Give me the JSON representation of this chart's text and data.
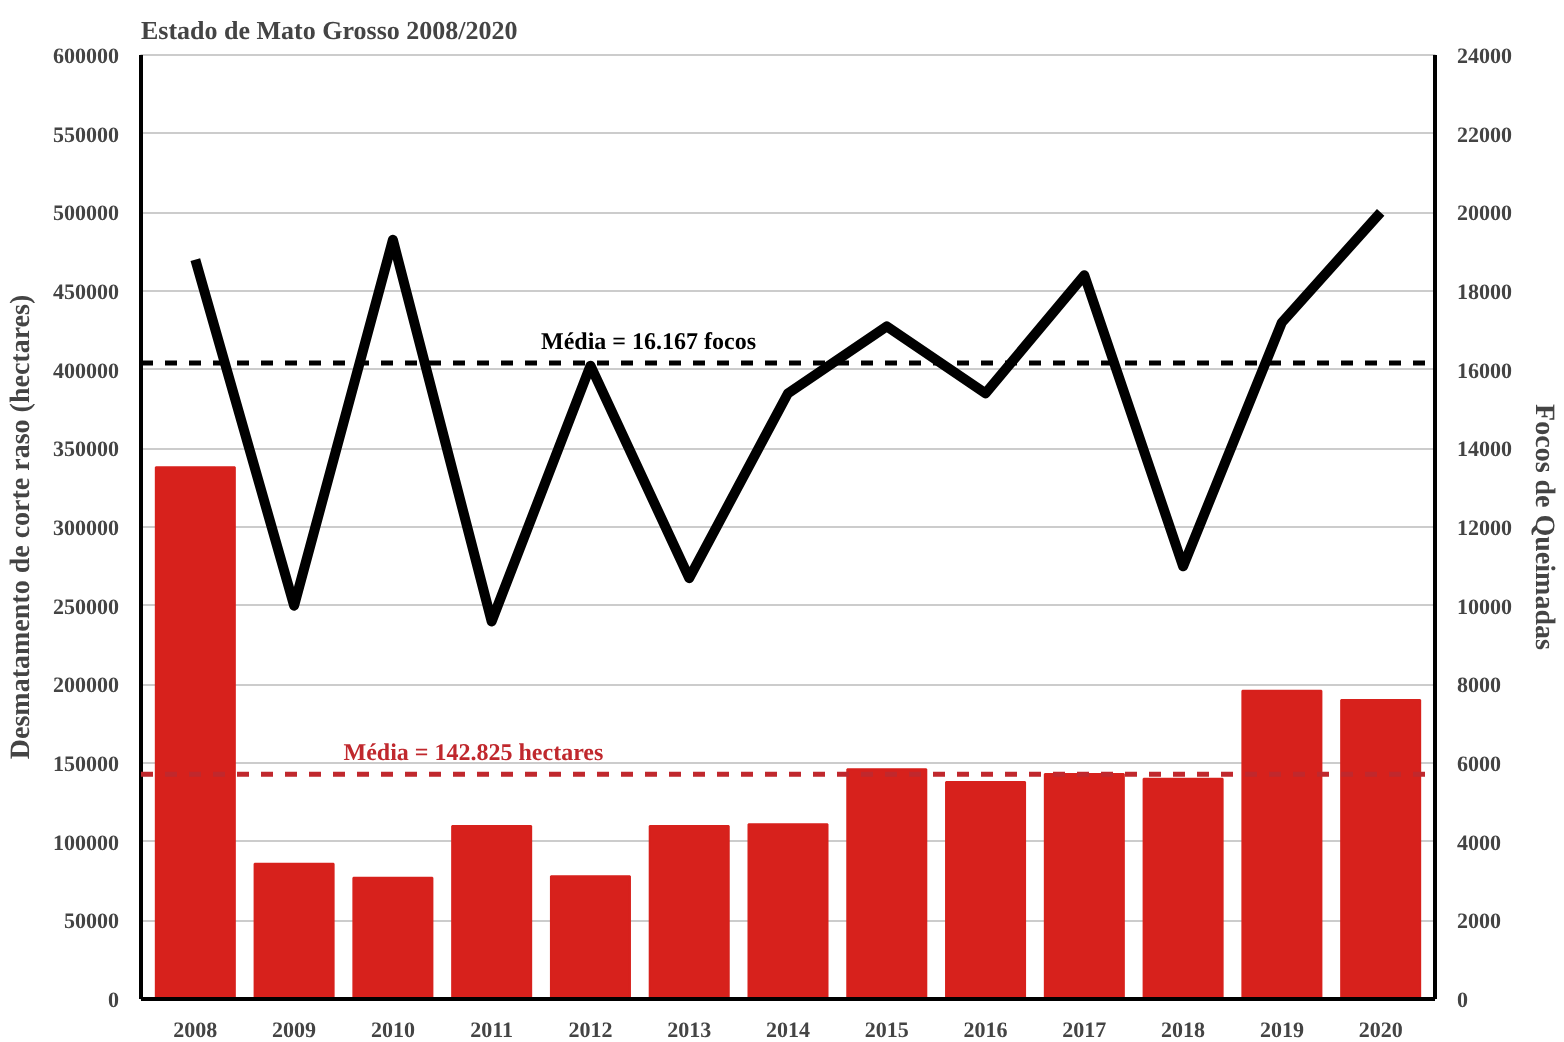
{
  "chart_data": {
    "type": "bar",
    "title": "Estado de Mato Grosso 2008/2020",
    "ylabel": "Desmatamento de corte raso (hectares)",
    "y2label": "Focos de Queimadas",
    "categories": [
      "2008",
      "2009",
      "2010",
      "2011",
      "2012",
      "2013",
      "2014",
      "2015",
      "2016",
      "2017",
      "2018",
      "2019",
      "2020"
    ],
    "series": [
      {
        "color": "#d7211c",
        "values": [
          338000,
          86000,
          77000,
          110000,
          78000,
          110000,
          111000,
          146000,
          138000,
          143000,
          140000,
          196000,
          190000
        ]
      },
      {
        "type": "line",
        "axis": "y2",
        "color": "#000000",
        "values": [
          18800,
          10000,
          19300,
          9600,
          16100,
          10700,
          15400,
          17100,
          15400,
          18400,
          11000,
          17200,
          20000
        ]
      }
    ],
    "ylim": [
      0,
      600000
    ],
    "yticks": [
      0,
      50000,
      100000,
      150000,
      200000,
      250000,
      300000,
      350000,
      400000,
      450000,
      500000,
      550000,
      600000
    ],
    "y2lim": [
      0,
      24000
    ],
    "y2ticks": [
      0,
      2000,
      4000,
      6000,
      8000,
      10000,
      12000,
      14000,
      16000,
      18000,
      20000,
      22000,
      24000
    ],
    "ref_lines": [
      {
        "axis": "y2",
        "value": 16167,
        "label": "Média = 16.167 focos",
        "color": "#000000",
        "line_style": "dashed"
      },
      {
        "axis": "y",
        "value": 142825,
        "label": "Média = 142.825 hectares",
        "color": "#c0282d",
        "line_style": "dashed"
      }
    ],
    "grid": "y"
  }
}
